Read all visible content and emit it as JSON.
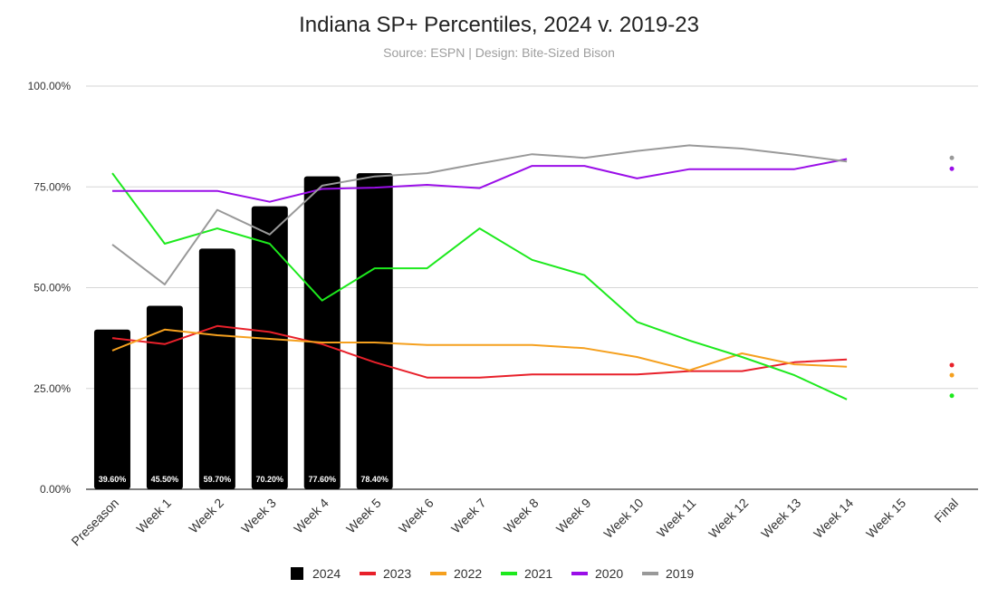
{
  "chart_data": {
    "type": "bar+line",
    "title": "Indiana SP+ Percentiles, 2024 v. 2019-23",
    "subtitle": "Source: ESPN | Design: Bite-Sized Bison",
    "categories": [
      "Preseason",
      "Week 1",
      "Week 2",
      "Week 3",
      "Week 4",
      "Week 5",
      "Week 6",
      "Week 7",
      "Week 8",
      "Week 9",
      "Week 10",
      "Week 11",
      "Week 12",
      "Week 13",
      "Week 14",
      "Week 15",
      "Final"
    ],
    "ylim": [
      0,
      100
    ],
    "yticks": [
      0,
      25,
      50,
      75,
      100
    ],
    "ytick_labels": [
      "0.00%",
      "25.00%",
      "50.00%",
      "75.00%",
      "100.00%"
    ],
    "bars": {
      "name": "2024",
      "color": "#000000",
      "values": [
        39.6,
        45.5,
        59.7,
        70.2,
        77.6,
        78.4
      ],
      "labels": [
        "39.60%",
        "45.50%",
        "59.70%",
        "70.20%",
        "77.60%",
        "78.40%"
      ]
    },
    "series": [
      {
        "name": "2023",
        "color": "#e8202a",
        "values": [
          37.5,
          36,
          40.5,
          39,
          36,
          31.5,
          27.7,
          27.7,
          28.5,
          28.5,
          28.5,
          29.3,
          29.3,
          31.5,
          32.2,
          null,
          30.8
        ]
      },
      {
        "name": "2022",
        "color": "#f5a01e",
        "values": [
          34.4,
          39.6,
          38.2,
          37.3,
          36.4,
          36.4,
          35.8,
          35.8,
          35.8,
          35,
          32.8,
          29.5,
          33.7,
          31,
          30.4,
          null,
          28.3
        ]
      },
      {
        "name": "2021",
        "color": "#1de91d",
        "values": [
          78.4,
          60.9,
          64.7,
          60.9,
          46.8,
          54.8,
          54.8,
          64.7,
          56.9,
          53.1,
          41.5,
          36.9,
          32.8,
          28.3,
          22.3,
          null,
          23.2
        ]
      },
      {
        "name": "2020",
        "color": "#9a0ee8",
        "values": [
          74,
          74,
          74,
          71.3,
          74.5,
          74.8,
          75.5,
          74.7,
          80.2,
          80.2,
          77.1,
          79.4,
          79.4,
          79.4,
          81.9,
          null,
          79.5
        ]
      },
      {
        "name": "2019",
        "color": "#999999",
        "values": [
          60.7,
          50.8,
          69.3,
          63.2,
          75.3,
          77.6,
          78.4,
          80.8,
          83.1,
          82.2,
          83.9,
          85.3,
          84.5,
          83,
          81.3,
          null,
          82.2
        ]
      }
    ],
    "legend": {
      "position": "bottom",
      "items": [
        {
          "name": "2024",
          "color": "#000000"
        },
        {
          "name": "2023",
          "color": "#e8202a"
        },
        {
          "name": "2022",
          "color": "#f5a01e"
        },
        {
          "name": "2021",
          "color": "#1de91d"
        },
        {
          "name": "2020",
          "color": "#9a0ee8"
        },
        {
          "name": "2019",
          "color": "#999999"
        }
      ]
    },
    "grid": true
  }
}
